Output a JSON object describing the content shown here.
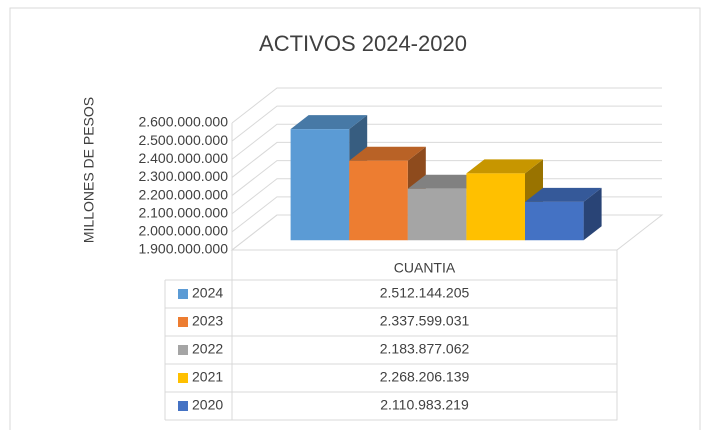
{
  "chart_data": {
    "type": "bar3d",
    "title": "ACTIVOS 2024-2020",
    "y_label": "MILLONES DE PESOS",
    "categories": [
      "CUANTIA"
    ],
    "series": [
      {
        "name": "2024",
        "color": "#5b9bd5",
        "values": [
          2512144205
        ],
        "value_labels": [
          "2.512.144.205"
        ]
      },
      {
        "name": "2023",
        "color": "#ed7d31",
        "values": [
          2337599031
        ],
        "value_labels": [
          "2.337.599.031"
        ]
      },
      {
        "name": "2022",
        "color": "#a5a5a5",
        "values": [
          2183877062
        ],
        "value_labels": [
          "2.183.877.062"
        ]
      },
      {
        "name": "2021",
        "color": "#ffc000",
        "values": [
          2268206139
        ],
        "value_labels": [
          "2.268.206.139"
        ]
      },
      {
        "name": "2020",
        "color": "#4472c4",
        "values": [
          2110983219
        ],
        "value_labels": [
          "2.110.983.219"
        ]
      }
    ],
    "ylim": [
      1900000000,
      2600000000
    ],
    "yticks": [
      {
        "value": 1900000000,
        "label": "1.900.000.000"
      },
      {
        "value": 2000000000,
        "label": "2.000.000.000"
      },
      {
        "value": 2100000000,
        "label": "2.100.000.000"
      },
      {
        "value": 2200000000,
        "label": "2.200.000.000"
      },
      {
        "value": 2300000000,
        "label": "2.300.000.000"
      },
      {
        "value": 2400000000,
        "label": "2.400.000.000"
      },
      {
        "value": 2500000000,
        "label": "2.500.000.000"
      },
      {
        "value": 2600000000,
        "label": "2.600.000.000"
      }
    ],
    "grid": true
  }
}
